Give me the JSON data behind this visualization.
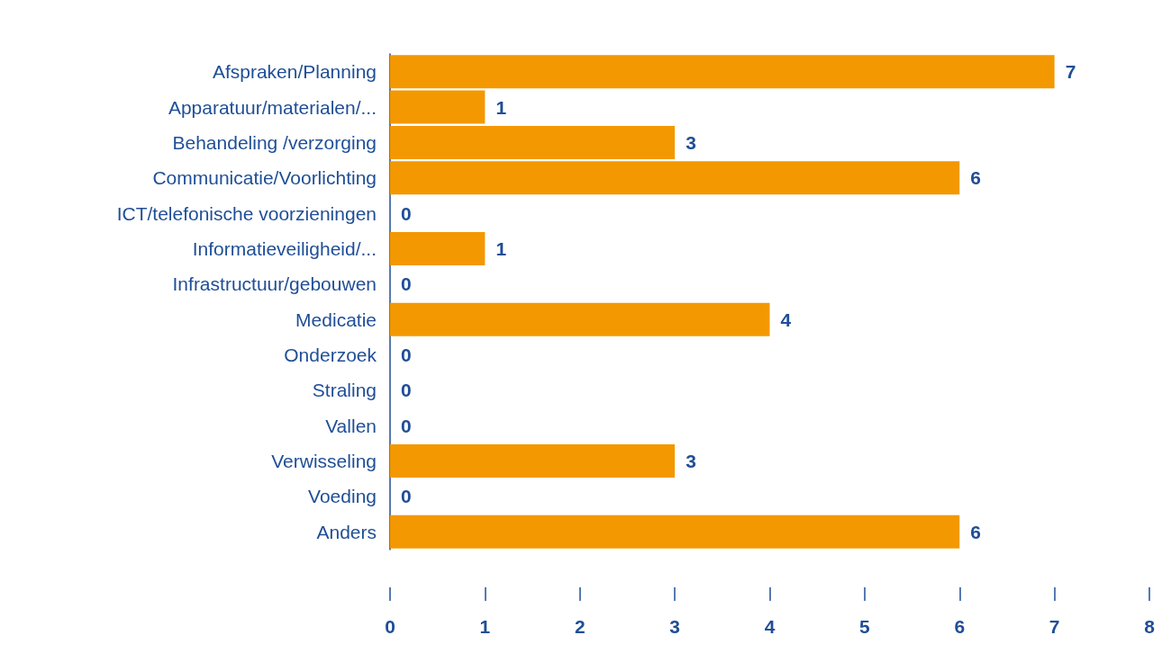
{
  "chart_data": {
    "type": "bar",
    "orientation": "horizontal",
    "categories": [
      "Afspraken/Planning",
      "Apparatuur/materialen/...",
      "Behandeling /verzorging",
      "Communicatie/Voorlichting",
      "ICT/telefonische voorzieningen",
      "Informatieveiligheid/...",
      "Infrastructuur/gebouwen",
      "Medicatie",
      "Onderzoek",
      "Straling",
      "Vallen",
      "Verwisseling",
      "Voeding",
      "Anders"
    ],
    "values": [
      7,
      1,
      3,
      6,
      0,
      1,
      0,
      4,
      0,
      0,
      0,
      3,
      0,
      6
    ],
    "color": "#f39800",
    "xlim": [
      0,
      8
    ],
    "xticks": [
      0,
      1,
      2,
      3,
      4,
      5,
      6,
      7,
      8
    ],
    "data_labels": true
  }
}
